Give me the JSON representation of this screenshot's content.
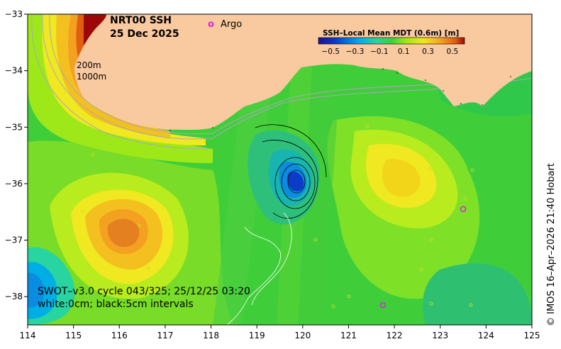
{
  "title": {
    "line1": "NRT00 SSH",
    "line2": "25 Dec 2025"
  },
  "legend": {
    "marker_symbol": "o",
    "marker_label": "Argo",
    "marker_color": "#e020e0"
  },
  "colorbar": {
    "title": "SSH–Local Mean MDT (0.6m) [m]",
    "tick_labels": [
      "−0.5",
      "−0.3",
      "−0.1",
      "0.1",
      "0.3",
      "0.5"
    ],
    "min": -0.6,
    "max": 0.6
  },
  "contour_labels": {
    "depth1": "200m",
    "depth2": "1000m"
  },
  "annotation": {
    "line1": "SWOT–v3.0 cycle 043/325; 25/12/25 03:20",
    "line2": "white:0cm; black:5cm intervals"
  },
  "axes": {
    "x_ticks": [
      "114",
      "115",
      "116",
      "117",
      "118",
      "119",
      "120",
      "121",
      "122",
      "123",
      "124",
      "125"
    ],
    "y_ticks": [
      "−33",
      "−34",
      "−35",
      "−36",
      "−37",
      "−38"
    ]
  },
  "credit": "© IMOS 16–Apr–2026 21:40 Hobart",
  "colors": {
    "land": "#f9c9a0",
    "ocean_base": "#3fce3a",
    "positive_high": "#a00000",
    "negative_low": "#0a3cc8"
  },
  "argo_floats": [
    {
      "lon": 123.5,
      "lat": -36.45
    },
    {
      "lon": 121.75,
      "lat": -38.15
    }
  ]
}
